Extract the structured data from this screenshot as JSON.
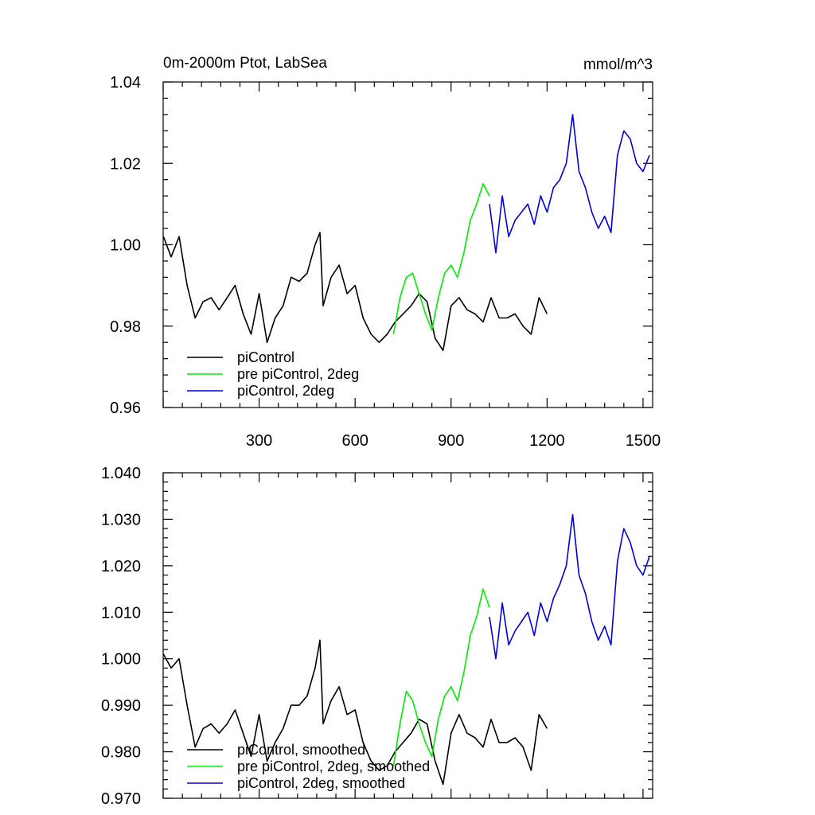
{
  "chart_data": [
    {
      "type": "line",
      "title": "0m-2000m Ptot, LabSea",
      "units": "mmol/m^3",
      "xlim": [
        0,
        1530
      ],
      "ylim": [
        0.96,
        1.04
      ],
      "xticks": [
        300,
        600,
        900,
        1200,
        1500
      ],
      "xtick_labels": [
        "300",
        "600",
        "900",
        "1200",
        "1500"
      ],
      "yticks": [
        0.96,
        0.98,
        1.0,
        1.02,
        1.04
      ],
      "ytick_labels": [
        "0.96",
        "0.98",
        "1.00",
        "1.02",
        "1.04"
      ],
      "legend_position": "bottom-left",
      "series": [
        {
          "name": "piControl",
          "color": "#000000",
          "x": [
            1,
            25,
            50,
            75,
            100,
            125,
            150,
            175,
            200,
            225,
            250,
            275,
            300,
            325,
            350,
            375,
            400,
            425,
            450,
            475,
            490,
            500,
            525,
            550,
            575,
            600,
            625,
            650,
            675,
            700,
            725,
            750,
            775,
            800,
            825,
            850,
            875,
            900,
            925,
            950,
            975,
            1000,
            1025,
            1050,
            1075,
            1100,
            1125,
            1150,
            1175,
            1200
          ],
          "values": [
            1.002,
            0.997,
            1.002,
            0.99,
            0.982,
            0.986,
            0.987,
            0.984,
            0.987,
            0.99,
            0.983,
            0.978,
            0.988,
            0.976,
            0.982,
            0.985,
            0.992,
            0.991,
            0.993,
            1.0,
            1.003,
            0.985,
            0.992,
            0.995,
            0.988,
            0.99,
            0.982,
            0.978,
            0.976,
            0.978,
            0.981,
            0.983,
            0.985,
            0.988,
            0.986,
            0.977,
            0.974,
            0.985,
            0.987,
            0.984,
            0.983,
            0.981,
            0.987,
            0.982,
            0.982,
            0.983,
            0.98,
            0.978,
            0.987,
            0.983
          ]
        },
        {
          "name": "pre piControl, 2deg",
          "color": "#00ee00",
          "x": [
            720,
            740,
            760,
            780,
            800,
            820,
            840,
            860,
            880,
            900,
            920,
            940,
            960,
            980,
            1000,
            1020
          ],
          "values": [
            0.978,
            0.987,
            0.992,
            0.993,
            0.988,
            0.983,
            0.979,
            0.987,
            0.993,
            0.995,
            0.992,
            0.998,
            1.006,
            1.01,
            1.015,
            1.012
          ]
        },
        {
          "name": "piControl, 2deg",
          "color": "#0000dd",
          "x": [
            1020,
            1040,
            1060,
            1080,
            1100,
            1120,
            1140,
            1160,
            1180,
            1200,
            1220,
            1240,
            1260,
            1280,
            1300,
            1320,
            1340,
            1360,
            1380,
            1400,
            1420,
            1440,
            1460,
            1480,
            1500,
            1520
          ],
          "values": [
            1.01,
            0.998,
            1.012,
            1.002,
            1.006,
            1.008,
            1.01,
            1.005,
            1.012,
            1.008,
            1.014,
            1.016,
            1.02,
            1.032,
            1.018,
            1.014,
            1.008,
            1.004,
            1.007,
            1.003,
            1.022,
            1.028,
            1.026,
            1.02,
            1.018,
            1.022
          ]
        }
      ]
    },
    {
      "type": "line",
      "title": "",
      "units": "",
      "xlim": [
        0,
        1530
      ],
      "ylim": [
        0.97,
        1.04
      ],
      "xticks": [
        300,
        600,
        900,
        1200,
        1500
      ],
      "xtick_labels": [
        "",
        "",
        "",
        "",
        ""
      ],
      "yticks": [
        0.97,
        0.98,
        0.99,
        1.0,
        1.01,
        1.02,
        1.03,
        1.04
      ],
      "ytick_labels": [
        "0.970",
        "0.980",
        "0.990",
        "1.000",
        "1.010",
        "1.020",
        "1.030",
        "1.040"
      ],
      "legend_position": "bottom-left",
      "series": [
        {
          "name": "piControl, smoothed",
          "color": "#000000",
          "x": [
            1,
            25,
            50,
            75,
            100,
            125,
            150,
            175,
            200,
            225,
            250,
            275,
            300,
            325,
            350,
            375,
            400,
            425,
            450,
            475,
            490,
            500,
            525,
            550,
            575,
            600,
            625,
            650,
            675,
            700,
            725,
            750,
            775,
            800,
            825,
            850,
            875,
            900,
            925,
            950,
            975,
            1000,
            1025,
            1050,
            1075,
            1100,
            1125,
            1150,
            1175,
            1200
          ],
          "values": [
            1.001,
            0.998,
            1.0,
            0.99,
            0.981,
            0.985,
            0.986,
            0.984,
            0.986,
            0.989,
            0.984,
            0.979,
            0.988,
            0.978,
            0.982,
            0.985,
            0.99,
            0.99,
            0.992,
            0.998,
            1.004,
            0.986,
            0.991,
            0.994,
            0.988,
            0.989,
            0.982,
            0.978,
            0.976,
            0.977,
            0.98,
            0.982,
            0.984,
            0.987,
            0.986,
            0.978,
            0.973,
            0.984,
            0.988,
            0.984,
            0.983,
            0.981,
            0.987,
            0.982,
            0.982,
            0.983,
            0.981,
            0.976,
            0.988,
            0.985
          ]
        },
        {
          "name": "pre piControl, 2deg, smoothed",
          "color": "#00ee00",
          "x": [
            720,
            740,
            760,
            780,
            800,
            820,
            840,
            860,
            880,
            900,
            920,
            940,
            960,
            980,
            1000,
            1020
          ],
          "values": [
            0.977,
            0.986,
            0.993,
            0.991,
            0.986,
            0.982,
            0.979,
            0.987,
            0.992,
            0.994,
            0.991,
            0.997,
            1.005,
            1.009,
            1.015,
            1.011
          ]
        },
        {
          "name": "piControl, 2deg, smoothed",
          "color": "#0000dd",
          "x": [
            1020,
            1040,
            1060,
            1080,
            1100,
            1120,
            1140,
            1160,
            1180,
            1200,
            1220,
            1240,
            1260,
            1280,
            1300,
            1320,
            1340,
            1360,
            1380,
            1400,
            1420,
            1440,
            1460,
            1480,
            1500,
            1520
          ],
          "values": [
            1.009,
            1.0,
            1.012,
            1.003,
            1.006,
            1.008,
            1.01,
            1.005,
            1.012,
            1.008,
            1.013,
            1.016,
            1.02,
            1.031,
            1.018,
            1.014,
            1.008,
            1.004,
            1.007,
            1.003,
            1.021,
            1.028,
            1.025,
            1.02,
            1.018,
            1.022
          ]
        }
      ]
    }
  ]
}
